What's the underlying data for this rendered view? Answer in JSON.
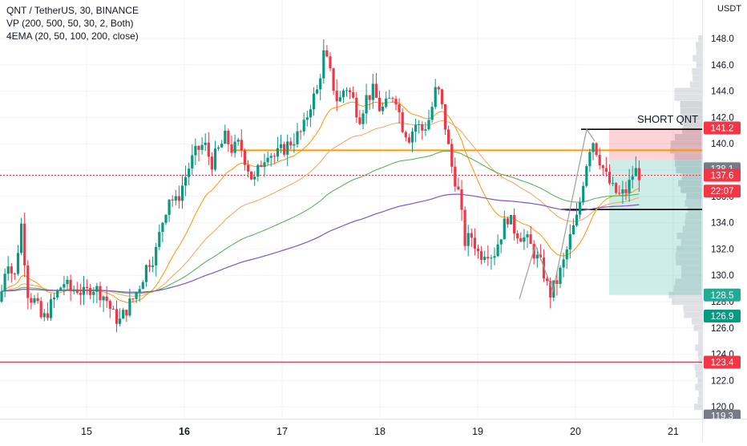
{
  "legend": {
    "symbol": "QNT / TetherUS, 30, BINANCE",
    "vp": "VP (200, 500, 50, 30, 2, Both)",
    "ema": "4EMA (20, 50, 100, 200, close)"
  },
  "price_axis": {
    "currency": "USDT",
    "ticks": [
      "148.0",
      "146.0",
      "144.0",
      "142.0",
      "140.0",
      "138.0",
      "136.0",
      "134.0",
      "132.0",
      "130.0",
      "128.0",
      "126.0",
      "124.0",
      "122.0",
      "120.0"
    ]
  },
  "time_axis": {
    "labels": [
      {
        "text": "15",
        "bold": false
      },
      {
        "text": "16",
        "bold": true
      },
      {
        "text": "17",
        "bold": false
      },
      {
        "text": "18",
        "bold": false
      },
      {
        "text": "19",
        "bold": false
      },
      {
        "text": "20",
        "bold": false
      },
      {
        "text": "21",
        "bold": false
      }
    ]
  },
  "price_labels": [
    {
      "text": "141.2",
      "price": 141.2,
      "bg": "#f23645",
      "color": "#ffffff"
    },
    {
      "text": "138.1",
      "price": 138.1,
      "bg": "#787b86",
      "color": "#ffffff"
    },
    {
      "text": "137.6",
      "price": 137.6,
      "bg": "#f23645",
      "color": "#ffffff"
    },
    {
      "text": "22:07",
      "price": 136.4,
      "bg": "#f23645",
      "color": "#ffffff"
    },
    {
      "text": "128.5",
      "price": 128.5,
      "bg": "#22ab94",
      "color": "#ffffff"
    },
    {
      "text": "126.9",
      "price": 126.9,
      "bg": "#089981",
      "color": "#ffffff"
    },
    {
      "text": "123.4",
      "price": 123.4,
      "bg": "#f23645",
      "color": "#ffffff"
    },
    {
      "text": "119.3",
      "price": 119.3,
      "bg": "#787b86",
      "color": "#ffffff"
    }
  ],
  "annotation": {
    "text": "SHORT QNT"
  },
  "colors": {
    "up": "#089981",
    "down": "#f23645",
    "orange": "#ff9800",
    "ema20": "#ff9800",
    "ema50": "#f7a35c",
    "ema100": "#4caf50",
    "ema200": "#7e57c2",
    "vp": "#b2b5be",
    "short_zone": "#f23645",
    "long_zone": "#22ab94"
  },
  "chart_data": {
    "type": "candlestick",
    "title": "QNT / TetherUS, 30, BINANCE",
    "y_range": [
      119,
      149
    ],
    "x_labels": [
      "15",
      "16",
      "17",
      "18",
      "19",
      "20",
      "21"
    ],
    "horizontal_lines": [
      {
        "price": 139.5,
        "color": "#ff9800"
      },
      {
        "price": 123.4,
        "color": "#f23645"
      },
      {
        "price": 141.1,
        "color": "black"
      },
      {
        "price": 135.0,
        "color": "black"
      }
    ],
    "trade_position": {
      "entry": 138.8,
      "stop": 141.2,
      "target": 128.5
    },
    "price_path": [
      [
        130,
        128.0
      ],
      [
        131,
        131.5
      ],
      [
        132,
        129.5
      ],
      [
        133,
        134.0
      ],
      [
        134,
        128.5
      ],
      [
        135,
        128.0
      ],
      [
        136,
        126.5
      ],
      [
        137,
        127.5
      ],
      [
        138,
        128.5
      ],
      [
        139,
        129.5
      ],
      [
        140,
        128.8
      ],
      [
        141,
        129.0
      ],
      [
        142,
        128.5
      ],
      [
        143,
        129.2
      ],
      [
        144,
        128.8
      ],
      [
        145,
        128.3
      ],
      [
        146,
        127.0
      ],
      [
        147,
        126.5
      ],
      [
        148,
        127.5
      ],
      [
        149,
        128.3
      ],
      [
        150,
        129.5
      ],
      [
        151,
        131.0
      ],
      [
        152,
        131.5
      ],
      [
        153,
        134.0
      ],
      [
        154,
        136.0
      ],
      [
        155,
        135.5
      ],
      [
        156,
        137.0
      ],
      [
        157,
        138.5
      ],
      [
        158,
        139.5
      ],
      [
        159,
        140.0
      ],
      [
        160,
        138.5
      ],
      [
        161,
        139.5
      ],
      [
        162,
        140.5
      ],
      [
        163,
        139.5
      ],
      [
        164,
        140.0
      ],
      [
        165,
        138.5
      ],
      [
        166,
        137.0
      ],
      [
        167,
        138.5
      ],
      [
        168,
        139.5
      ],
      [
        169,
        139.0
      ],
      [
        170,
        139.5
      ],
      [
        171,
        140.0
      ],
      [
        172,
        140.5
      ],
      [
        173,
        141.0
      ],
      [
        174,
        143.0
      ],
      [
        175,
        144.0
      ],
      [
        176,
        147.0
      ],
      [
        177,
        145.0
      ],
      [
        178,
        143.0
      ],
      [
        179,
        144.5
      ],
      [
        180,
        143.5
      ],
      [
        181,
        142.0
      ],
      [
        182,
        143.5
      ],
      [
        183,
        144.0
      ],
      [
        184,
        142.5
      ],
      [
        185,
        143.0
      ],
      [
        186,
        144.0
      ],
      [
        187,
        141.5
      ],
      [
        188,
        140.5
      ],
      [
        189,
        141.5
      ],
      [
        190,
        141.0
      ],
      [
        191,
        142.0
      ],
      [
        192,
        144.5
      ],
      [
        193,
        142.0
      ],
      [
        194,
        138.5
      ],
      [
        195,
        136.5
      ],
      [
        196,
        132.5
      ],
      [
        197,
        133.0
      ],
      [
        198,
        131.5
      ],
      [
        199,
        132.0
      ],
      [
        200,
        131.5
      ],
      [
        201,
        133.0
      ],
      [
        202,
        134.5
      ],
      [
        203,
        133.5
      ],
      [
        204,
        133.0
      ],
      [
        205,
        132.5
      ],
      [
        206,
        131.5
      ],
      [
        207,
        130.5
      ],
      [
        208,
        128.5
      ],
      [
        209,
        129.5
      ],
      [
        210,
        131.0
      ],
      [
        211,
        133.0
      ],
      [
        212,
        134.5
      ],
      [
        213,
        138.0
      ],
      [
        214,
        140.5
      ],
      [
        215,
        139.0
      ],
      [
        216,
        137.5
      ],
      [
        217,
        136.5
      ],
      [
        218,
        136.0
      ],
      [
        219,
        136.5
      ],
      [
        220,
        138.0
      ],
      [
        221,
        137.6
      ]
    ]
  }
}
